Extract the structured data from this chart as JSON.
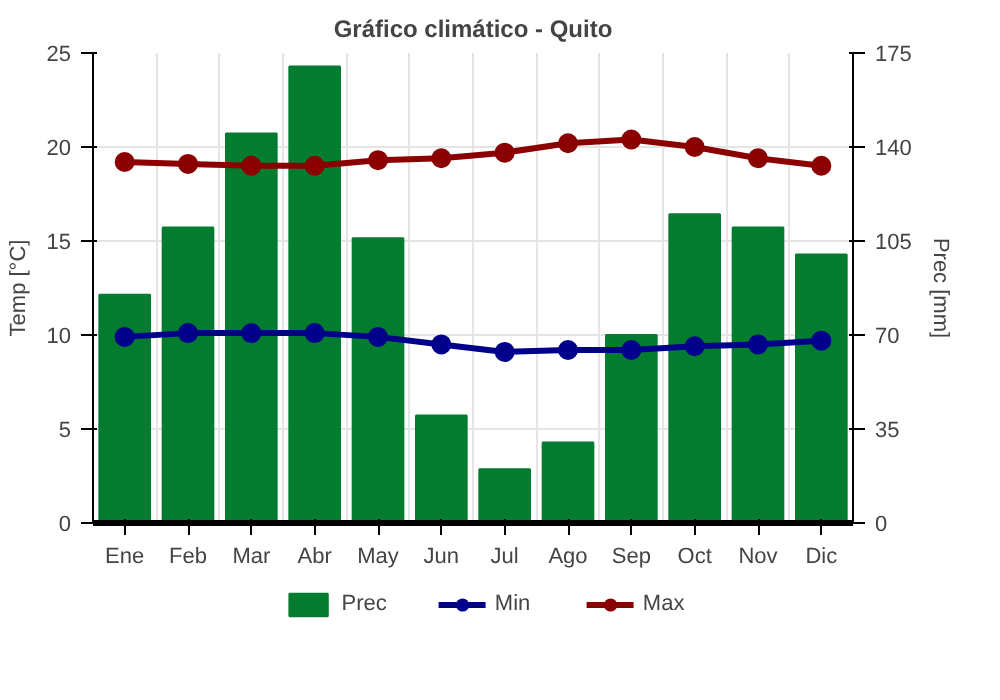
{
  "chart_data": {
    "type": "line",
    "title": "Gráfico climático - Quito",
    "ylabel": "Temp [°C]",
    "y2label": "Prec [mm]",
    "categories": [
      "Ene",
      "Feb",
      "Mar",
      "Abr",
      "May",
      "Jun",
      "Jul",
      "Ago",
      "Sep",
      "Oct",
      "Nov",
      "Dic"
    ],
    "series": [
      {
        "name": "Prec",
        "type": "bar",
        "axis": "y2",
        "color": "#037c30",
        "values": [
          85,
          110,
          145,
          170,
          106,
          40,
          20,
          30,
          70,
          115,
          110,
          100
        ]
      },
      {
        "name": "Min",
        "color": "#00008b",
        "values": [
          9.9,
          10.1,
          10.1,
          10.1,
          9.9,
          9.5,
          9.1,
          9.2,
          9.2,
          9.4,
          9.5,
          9.7
        ]
      },
      {
        "name": "Max",
        "color": "#8b0000",
        "values": [
          19.2,
          19.1,
          19.0,
          19.0,
          19.3,
          19.4,
          19.7,
          20.2,
          20.4,
          20.0,
          19.4,
          19.0
        ]
      }
    ],
    "ylim": [
      0,
      25
    ],
    "yticks": [
      0,
      5,
      10,
      15,
      20,
      25
    ],
    "y2lim": [
      0,
      175
    ],
    "y2ticks": [
      0,
      35,
      70,
      105,
      140,
      175
    ],
    "grid": true,
    "legend": "bottom",
    "marker": "circle",
    "line_style": "solid"
  }
}
